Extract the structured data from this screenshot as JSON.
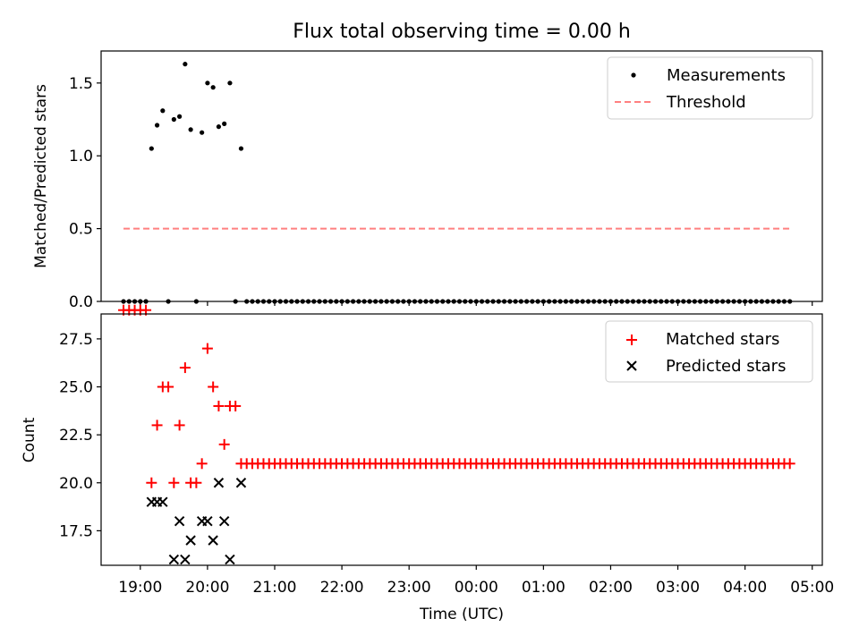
{
  "chart_data": [
    {
      "type": "scatter",
      "title": "Flux total observing time = 0.00 h",
      "ylabel": "Matched/Predicted stars",
      "xlabel": "",
      "xlim": [
        "18:25",
        "05:09"
      ],
      "ylim": [
        0,
        1.72
      ],
      "yticks": [
        0.0,
        0.5,
        1.0,
        1.5
      ],
      "ytick_labels": [
        "0.0",
        "0.5",
        "1.0",
        "1.5"
      ],
      "grid": false,
      "legend_position": "top-right",
      "series": [
        {
          "name": "Measurements",
          "marker": "dot",
          "color": "#000000",
          "points": [
            {
              "x": "18:45",
              "y": 0.0
            },
            {
              "x": "18:50",
              "y": 0.0
            },
            {
              "x": "18:55",
              "y": 0.0
            },
            {
              "x": "19:00",
              "y": 0.0
            },
            {
              "x": "19:05",
              "y": 0.0
            },
            {
              "x": "19:10",
              "y": 1.05
            },
            {
              "x": "19:15",
              "y": 1.21
            },
            {
              "x": "19:20",
              "y": 1.31
            },
            {
              "x": "19:25",
              "y": 0.0
            },
            {
              "x": "19:30",
              "y": 1.25
            },
            {
              "x": "19:35",
              "y": 1.27
            },
            {
              "x": "19:40",
              "y": 1.63
            },
            {
              "x": "19:45",
              "y": 1.18
            },
            {
              "x": "19:50",
              "y": 0.0
            },
            {
              "x": "19:55",
              "y": 1.16
            },
            {
              "x": "20:00",
              "y": 1.5
            },
            {
              "x": "20:05",
              "y": 1.47
            },
            {
              "x": "20:10",
              "y": 1.2
            },
            {
              "x": "20:15",
              "y": 1.22
            },
            {
              "x": "20:20",
              "y": 1.5
            },
            {
              "x": "20:25",
              "y": 0.0
            },
            {
              "x": "20:30",
              "y": 1.05
            }
          ],
          "constant_segment": {
            "start": "20:35",
            "end": "04:40",
            "step_minutes": 5,
            "y": 0.0
          }
        },
        {
          "name": "Threshold",
          "line_style": "dashed",
          "color": "#ff8080",
          "x": [
            "18:45",
            "04:40"
          ],
          "y": [
            0.5,
            0.5
          ]
        }
      ]
    },
    {
      "type": "scatter",
      "title": "",
      "xlabel": "Time (UTC)",
      "ylabel": "Count",
      "xlim": [
        "18:25",
        "05:09"
      ],
      "ylim": [
        15.7,
        28.8
      ],
      "yticks": [
        17.5,
        20.0,
        22.5,
        25.0,
        27.5
      ],
      "ytick_labels": [
        "17.5",
        "20.0",
        "22.5",
        "25.0",
        "27.5"
      ],
      "xticks": [
        "19:00",
        "20:00",
        "21:00",
        "22:00",
        "23:00",
        "00:00",
        "01:00",
        "02:00",
        "03:00",
        "04:00",
        "05:00"
      ],
      "grid": false,
      "legend_position": "top-right",
      "series": [
        {
          "name": "Matched stars",
          "marker": "plus",
          "color": "#ff0000",
          "points": [
            {
              "x": "18:45",
              "y": 29
            },
            {
              "x": "18:50",
              "y": 29
            },
            {
              "x": "18:55",
              "y": 29
            },
            {
              "x": "19:00",
              "y": 29
            },
            {
              "x": "19:05",
              "y": 29
            },
            {
              "x": "19:10",
              "y": 20
            },
            {
              "x": "19:15",
              "y": 23
            },
            {
              "x": "19:20",
              "y": 25
            },
            {
              "x": "19:25",
              "y": 25
            },
            {
              "x": "19:30",
              "y": 20
            },
            {
              "x": "19:35",
              "y": 23
            },
            {
              "x": "19:40",
              "y": 26
            },
            {
              "x": "19:45",
              "y": 20
            },
            {
              "x": "19:50",
              "y": 20
            },
            {
              "x": "19:55",
              "y": 21
            },
            {
              "x": "20:00",
              "y": 27
            },
            {
              "x": "20:05",
              "y": 25
            },
            {
              "x": "20:10",
              "y": 24
            },
            {
              "x": "20:15",
              "y": 22
            },
            {
              "x": "20:20",
              "y": 24
            },
            {
              "x": "20:25",
              "y": 24
            },
            {
              "x": "20:30",
              "y": 21
            }
          ],
          "constant_segment": {
            "start": "20:35",
            "end": "04:40",
            "step_minutes": 5,
            "y": 21
          }
        },
        {
          "name": "Predicted stars",
          "marker": "x",
          "color": "#000000",
          "points": [
            {
              "x": "19:10",
              "y": 19
            },
            {
              "x": "19:15",
              "y": 19
            },
            {
              "x": "19:20",
              "y": 19
            },
            {
              "x": "19:30",
              "y": 16
            },
            {
              "x": "19:35",
              "y": 18
            },
            {
              "x": "19:40",
              "y": 16
            },
            {
              "x": "19:45",
              "y": 17
            },
            {
              "x": "19:55",
              "y": 18
            },
            {
              "x": "20:00",
              "y": 18
            },
            {
              "x": "20:05",
              "y": 17
            },
            {
              "x": "20:10",
              "y": 20
            },
            {
              "x": "20:15",
              "y": 18
            },
            {
              "x": "20:20",
              "y": 16
            },
            {
              "x": "20:30",
              "y": 20
            }
          ]
        }
      ]
    }
  ]
}
